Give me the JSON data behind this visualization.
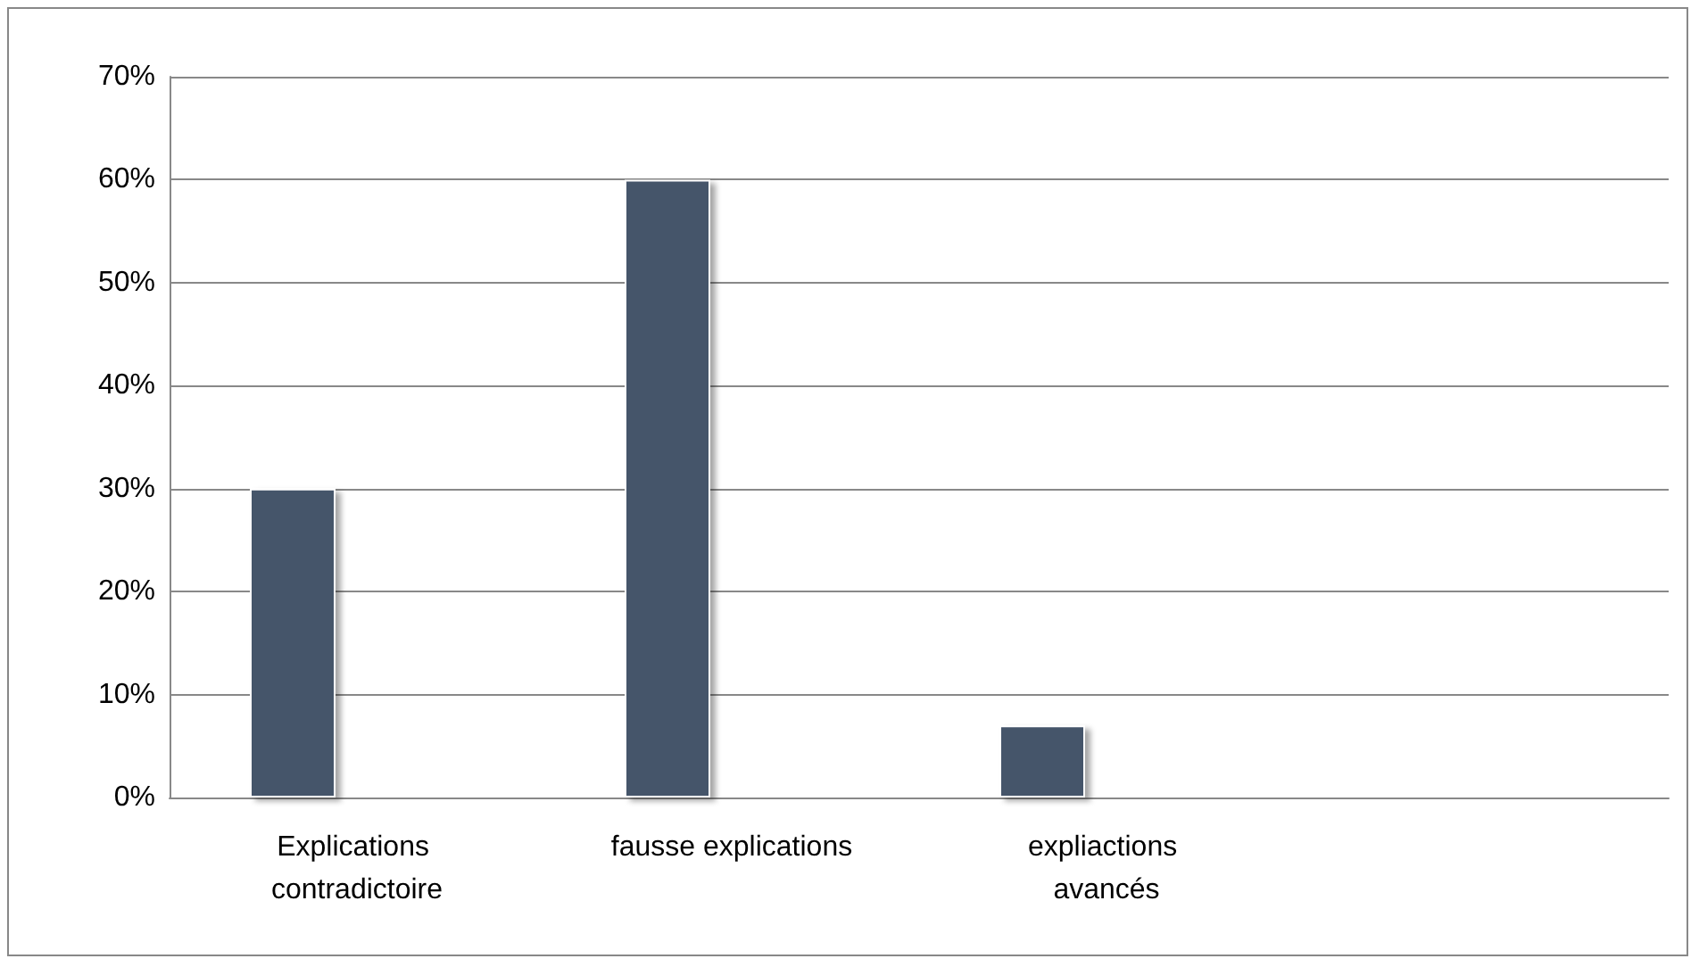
{
  "chart_data": {
    "type": "bar",
    "categories": [
      "Explications contradictoire",
      "fausse explications",
      "expliactions avancés",
      null
    ],
    "values": [
      30,
      60,
      7,
      null
    ],
    "color": "#44546a",
    "ylim": [
      0,
      70
    ],
    "yticks": [
      {
        "value": 0,
        "label": "0%"
      },
      {
        "value": 10,
        "label": "10%"
      },
      {
        "value": 20,
        "label": "20%"
      },
      {
        "value": 30,
        "label": "30%"
      },
      {
        "value": 40,
        "label": "40%"
      },
      {
        "value": 50,
        "label": "50%"
      },
      {
        "value": 60,
        "label": "60%"
      },
      {
        "value": 70,
        "label": "70%"
      }
    ],
    "grid": "y"
  }
}
